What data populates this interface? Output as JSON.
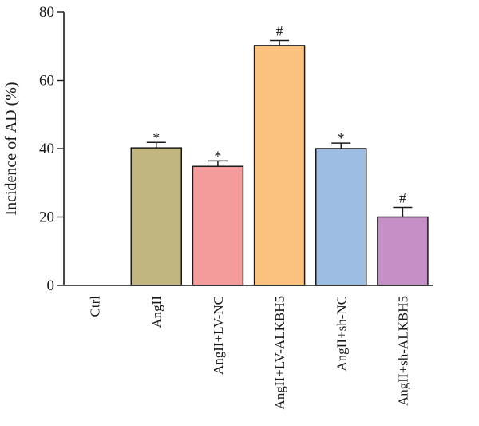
{
  "chart_data": {
    "type": "bar",
    "title": "",
    "xlabel": "",
    "ylabel": "Incidence of AD (%)",
    "ylim": [
      0,
      80
    ],
    "yticks": [
      0,
      20,
      40,
      60,
      80
    ],
    "grid": false,
    "legend": "none",
    "categories": [
      "Ctrl",
      "AngII",
      "AngII+LV-NC",
      "AngII+LV-ALKBH5",
      "AngII+sh-NC",
      "AngII+sh-ALKBH5"
    ],
    "values": [
      0,
      40.2,
      34.8,
      70.2,
      40.0,
      20.0
    ],
    "errors": [
      0,
      1.6,
      1.6,
      1.5,
      1.6,
      2.8
    ],
    "annotations": [
      "",
      "*",
      "*",
      "#",
      "*",
      "#"
    ],
    "colors": [
      "#ffffff",
      "#c1b67f",
      "#f49c9c",
      "#fbc27f",
      "#9dbde3",
      "#c490c6"
    ]
  }
}
